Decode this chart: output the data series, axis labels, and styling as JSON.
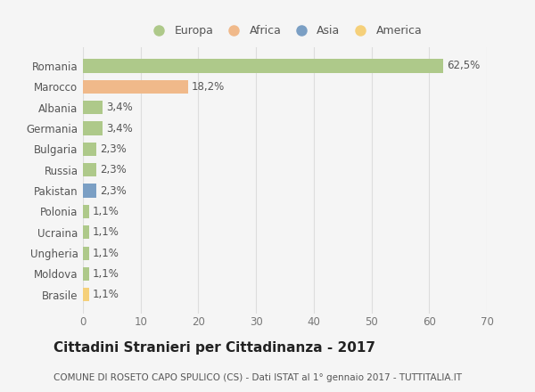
{
  "categories": [
    "Romania",
    "Marocco",
    "Albania",
    "Germania",
    "Bulgaria",
    "Russia",
    "Pakistan",
    "Polonia",
    "Ucraina",
    "Ungheria",
    "Moldova",
    "Brasile"
  ],
  "values": [
    62.5,
    18.2,
    3.4,
    3.4,
    2.3,
    2.3,
    2.3,
    1.1,
    1.1,
    1.1,
    1.1,
    1.1
  ],
  "labels": [
    "62,5%",
    "18,2%",
    "3,4%",
    "3,4%",
    "2,3%",
    "2,3%",
    "2,3%",
    "1,1%",
    "1,1%",
    "1,1%",
    "1,1%",
    "1,1%"
  ],
  "bar_colors": [
    "#aec98a",
    "#f0b98a",
    "#aec98a",
    "#aec98a",
    "#aec98a",
    "#aec98a",
    "#7b9fc4",
    "#aec98a",
    "#aec98a",
    "#aec98a",
    "#aec98a",
    "#f5d07a"
  ],
  "legend_labels": [
    "Europa",
    "Africa",
    "Asia",
    "America"
  ],
  "legend_colors": [
    "#aec98a",
    "#f0b98a",
    "#7b9fc4",
    "#f5d07a"
  ],
  "xlim": [
    0,
    70
  ],
  "xticks": [
    0,
    10,
    20,
    30,
    40,
    50,
    60,
    70
  ],
  "title": "Cittadini Stranieri per Cittadinanza - 2017",
  "subtitle": "COMUNE DI ROSETO CAPO SPULICO (CS) - Dati ISTAT al 1° gennaio 2017 - TUTTITALIA.IT",
  "background_color": "#f5f5f5",
  "grid_color": "#dddddd",
  "bar_height": 0.65,
  "label_fontsize": 8.5,
  "tick_fontsize": 8.5,
  "title_fontsize": 11,
  "subtitle_fontsize": 7.5
}
